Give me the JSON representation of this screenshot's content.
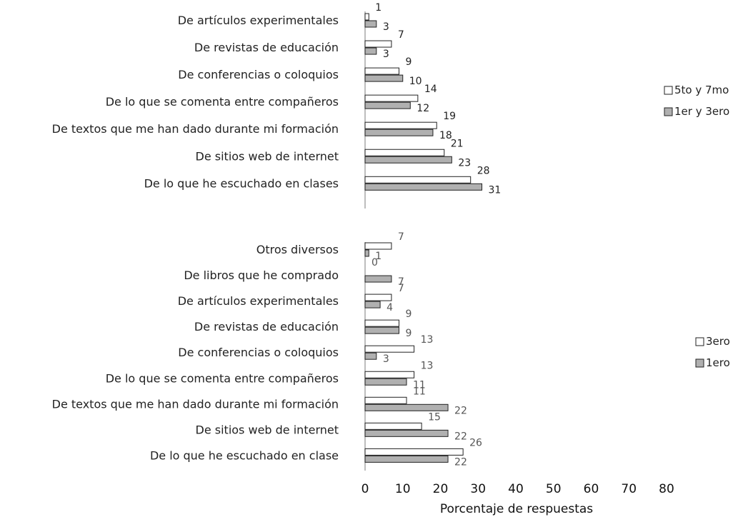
{
  "chart_data": [
    {
      "type": "bar",
      "orientation": "horizontal",
      "categories": [
        "De artículos experimentales",
        "De revistas de educación",
        "De conferencias o coloquios",
        "De lo que se comenta entre compañeros",
        "De textos que me han dado durante mi formación",
        "De sitios web de internet",
        "De lo que he escuchado en clases"
      ],
      "series": [
        {
          "name": "5to y 7mo",
          "color": "#ffffff",
          "values": [
            1,
            7,
            9,
            14,
            19,
            21,
            28
          ],
          "labels": [
            "1",
            "7",
            "9",
            "14",
            "19",
            "21",
            "28"
          ]
        },
        {
          "name": "1er y 3ero",
          "color": "#b0b0b0",
          "values": [
            3,
            3,
            10,
            12,
            18,
            23,
            31
          ],
          "labels": [
            "3",
            "3",
            "10",
            "12",
            "18",
            "23",
            "31"
          ]
        }
      ],
      "xlim": [
        0,
        80
      ],
      "legend_position": "right"
    },
    {
      "type": "bar",
      "orientation": "horizontal",
      "categories": [
        "Otros diversos",
        "De libros que he comprado",
        "De artículos experimentales",
        "De revistas de educación",
        "De conferencias o coloquios",
        "De lo que se comenta entre compañeros",
        "De textos que me han dado durante mi formación",
        "De sitios web de internet",
        "De lo que he escuchado en clase"
      ],
      "series": [
        {
          "name": "3ero",
          "color": "#ffffff",
          "values": [
            7,
            0,
            7,
            9,
            13,
            13,
            11,
            15,
            26
          ],
          "labels": [
            "7",
            "0",
            "7",
            "9",
            "13",
            "13",
            "11",
            "15",
            "26"
          ]
        },
        {
          "name": "1ero",
          "color": "#b0b0b0",
          "values": [
            1,
            7,
            4,
            9,
            3,
            11,
            22,
            22,
            22
          ],
          "labels": [
            "1",
            "7",
            "4",
            "9",
            "3",
            "11",
            "22",
            "22",
            "22"
          ]
        }
      ],
      "xlim": [
        0,
        80
      ],
      "xticks": [
        "0",
        "10",
        "20",
        "30",
        "40",
        "50",
        "60",
        "70",
        "80"
      ],
      "xlabel": "Porcentaje de respuestas",
      "legend_position": "right"
    }
  ]
}
